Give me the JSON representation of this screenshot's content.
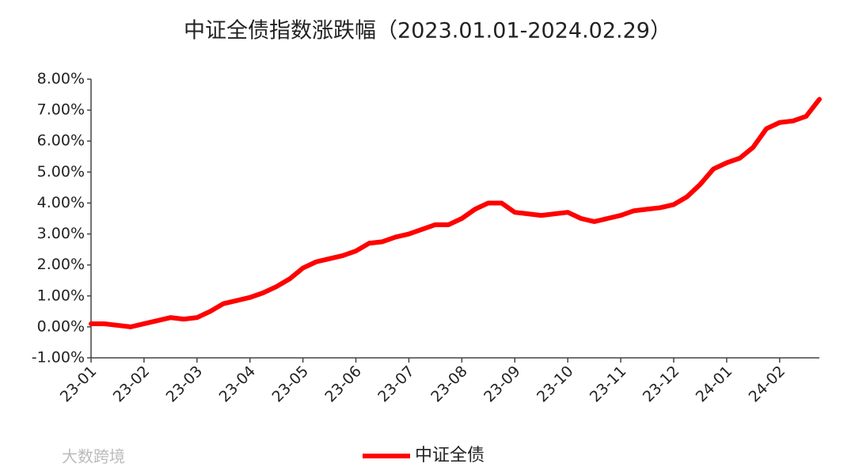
{
  "chart_data": {
    "type": "line",
    "title": "中证全债指数涨跌幅（2023.01.01-2024.02.29）",
    "watermark": "大数跨境",
    "categories": [
      "23-01",
      null,
      null,
      null,
      "23-02",
      null,
      null,
      null,
      "23-03",
      null,
      null,
      null,
      "23-04",
      null,
      null,
      null,
      "23-05",
      null,
      null,
      null,
      "23-06",
      null,
      null,
      null,
      "23-07",
      null,
      null,
      null,
      "23-08",
      null,
      null,
      null,
      "23-09",
      null,
      null,
      null,
      "23-10",
      null,
      null,
      null,
      "23-11",
      null,
      null,
      null,
      "23-12",
      null,
      null,
      null,
      "24-01",
      null,
      null,
      null,
      "24-02",
      null,
      null,
      null
    ],
    "series": [
      {
        "name": "中证全债",
        "color": "#ff0000",
        "values": [
          0.1,
          0.1,
          0.05,
          0.0,
          0.1,
          0.2,
          0.3,
          0.25,
          0.3,
          0.5,
          0.75,
          0.85,
          0.95,
          1.1,
          1.3,
          1.55,
          1.9,
          2.1,
          2.2,
          2.3,
          2.45,
          2.7,
          2.75,
          2.9,
          3.0,
          3.15,
          3.3,
          3.3,
          3.5,
          3.8,
          4.0,
          4.0,
          3.7,
          3.65,
          3.6,
          3.65,
          3.7,
          3.5,
          3.4,
          3.5,
          3.6,
          3.75,
          3.8,
          3.85,
          3.95,
          4.2,
          4.6,
          5.1,
          5.3,
          5.45,
          5.8,
          6.4,
          6.6,
          6.65,
          6.8,
          7.35
        ]
      }
    ],
    "ylim": [
      -1,
      8
    ],
    "yticks": [
      {
        "value": -1,
        "label": "-1.00%"
      },
      {
        "value": 0,
        "label": "0.00%"
      },
      {
        "value": 1,
        "label": "1.00%"
      },
      {
        "value": 2,
        "label": "2.00%"
      },
      {
        "value": 3,
        "label": "3.00%"
      },
      {
        "value": 4,
        "label": "4.00%"
      },
      {
        "value": 5,
        "label": "5.00%"
      },
      {
        "value": 6,
        "label": "6.00%"
      },
      {
        "value": 7,
        "label": "7.00%"
      },
      {
        "value": 8,
        "label": "8.00%"
      }
    ],
    "legend": "bottom"
  }
}
